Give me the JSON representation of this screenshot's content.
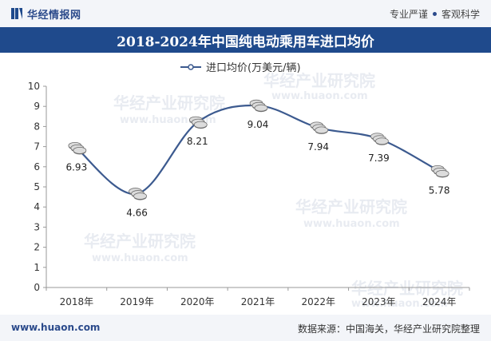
{
  "header": {
    "brand": "华经情报网",
    "tagline_left": "专业严谨",
    "tagline_right": "客观科学"
  },
  "title": "2018-2024年中国纯电动乘用车进口均价",
  "watermark": {
    "text": "华经产业研究院",
    "url": "www.huaon.com"
  },
  "footer": {
    "url": "www.huaon.com",
    "source": "数据来源：中国海关，华经产业研究院整理"
  },
  "colors": {
    "brand": "#1f4a8c",
    "line": "#3c5a8f",
    "coin_face": "#dcdcdc",
    "coin_edge": "#6e6e6e"
  },
  "chart_data": {
    "type": "line",
    "categories": [
      "2018年",
      "2019年",
      "2020年",
      "2021年",
      "2022年",
      "2023年",
      "2024年"
    ],
    "series": [
      {
        "name": "进口均价(万美元/辆)",
        "values": [
          6.93,
          4.66,
          8.21,
          9.04,
          7.94,
          7.39,
          5.78
        ]
      }
    ],
    "data_labels": [
      "6.93",
      "4.66",
      "8.21",
      "9.04",
      "7.94",
      "7.39",
      "5.78"
    ],
    "yticks": [
      "0",
      "1",
      "2",
      "3",
      "4",
      "5",
      "6",
      "7",
      "8",
      "9",
      "10"
    ],
    "ylim": [
      0,
      10
    ],
    "smooth": true,
    "marker": "coin-stack",
    "legend_position": "top-center",
    "grid": false
  }
}
